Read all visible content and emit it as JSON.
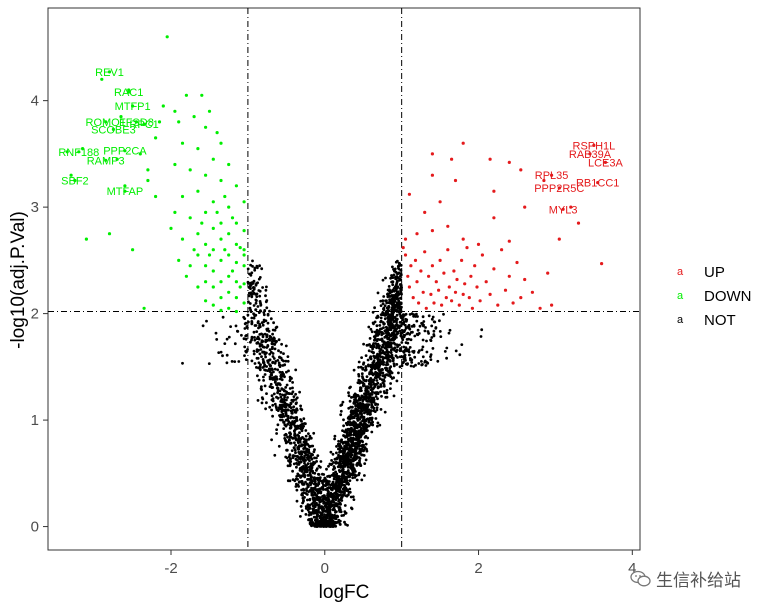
{
  "chart_data": {
    "type": "scatter",
    "xlabel": "logFC",
    "ylabel": "-log10(adj.P.Val)",
    "xlim": [
      -3.6,
      4.1
    ],
    "ylim": [
      -0.22,
      4.87
    ],
    "x_ticks": [
      -2,
      0,
      2,
      4
    ],
    "y_ticks": [
      0,
      1,
      2,
      3,
      4
    ],
    "vlines": [
      -1,
      1
    ],
    "hline": 2.02,
    "legend_position": "right",
    "series": [
      {
        "name": "UP",
        "color": "#e41a1c",
        "points": [
          [
            1.02,
            2.62
          ],
          [
            1.05,
            2.55
          ],
          [
            1.08,
            2.35
          ],
          [
            1.1,
            2.25
          ],
          [
            1.12,
            2.45
          ],
          [
            1.15,
            2.15
          ],
          [
            1.18,
            2.5
          ],
          [
            1.2,
            2.3
          ],
          [
            1.22,
            2.1
          ],
          [
            1.25,
            2.4
          ],
          [
            1.28,
            2.2
          ],
          [
            1.3,
            2.58
          ],
          [
            1.32,
            2.05
          ],
          [
            1.35,
            2.35
          ],
          [
            1.38,
            2.18
          ],
          [
            1.4,
            2.45
          ],
          [
            1.42,
            2.1
          ],
          [
            1.45,
            2.3
          ],
          [
            1.48,
            2.22
          ],
          [
            1.5,
            2.5
          ],
          [
            1.52,
            2.08
          ],
          [
            1.55,
            2.38
          ],
          [
            1.58,
            2.15
          ],
          [
            1.6,
            2.6
          ],
          [
            1.62,
            2.25
          ],
          [
            1.65,
            2.12
          ],
          [
            1.68,
            2.4
          ],
          [
            1.7,
            2.2
          ],
          [
            1.72,
            2.32
          ],
          [
            1.75,
            2.08
          ],
          [
            1.78,
            2.5
          ],
          [
            1.8,
            2.18
          ],
          [
            1.82,
            2.28
          ],
          [
            1.85,
            2.62
          ],
          [
            1.88,
            2.15
          ],
          [
            1.9,
            2.35
          ],
          [
            1.92,
            2.05
          ],
          [
            1.95,
            2.45
          ],
          [
            1.98,
            2.25
          ],
          [
            2.02,
            2.12
          ],
          [
            2.05,
            2.55
          ],
          [
            2.1,
            2.3
          ],
          [
            2.15,
            2.18
          ],
          [
            2.2,
            2.42
          ],
          [
            2.25,
            2.08
          ],
          [
            2.3,
            2.6
          ],
          [
            2.35,
            2.22
          ],
          [
            2.4,
            2.35
          ],
          [
            2.45,
            2.1
          ],
          [
            2.5,
            2.48
          ],
          [
            2.55,
            2.15
          ],
          [
            2.6,
            2.32
          ],
          [
            2.7,
            2.2
          ],
          [
            2.8,
            2.05
          ],
          [
            2.9,
            2.38
          ],
          [
            1.1,
            3.12
          ],
          [
            1.2,
            2.75
          ],
          [
            1.3,
            2.95
          ],
          [
            1.4,
            2.78
          ],
          [
            1.5,
            3.05
          ],
          [
            1.6,
            2.82
          ],
          [
            1.7,
            3.25
          ],
          [
            1.8,
            2.7
          ],
          [
            2.0,
            2.65
          ],
          [
            2.2,
            2.9
          ],
          [
            2.4,
            2.68
          ],
          [
            2.6,
            3.0
          ],
          [
            2.2,
            3.15
          ],
          [
            1.4,
            3.3
          ],
          [
            1.4,
            3.5
          ],
          [
            1.65,
            3.45
          ],
          [
            2.15,
            3.45
          ],
          [
            2.55,
            3.35
          ],
          [
            1.8,
            3.6
          ],
          [
            2.4,
            3.42
          ],
          [
            1.05,
            2.7
          ],
          [
            2.95,
            2.08
          ],
          [
            3.05,
            2.7
          ],
          [
            3.3,
            2.85
          ],
          [
            3.6,
            2.47
          ],
          [
            3.2,
            3.0
          ],
          [
            2.85,
            3.25
          ]
        ],
        "labels": [
          {
            "text": "RSPH1L",
            "x": 3.5,
            "y": 3.58
          },
          {
            "text": "RAB39A",
            "x": 3.45,
            "y": 3.5
          },
          {
            "text": "LCE3A",
            "x": 3.65,
            "y": 3.42
          },
          {
            "text": "RPL35",
            "x": 2.95,
            "y": 3.3
          },
          {
            "text": "PPP2R5C",
            "x": 3.05,
            "y": 3.18
          },
          {
            "text": "RB1CC1",
            "x": 3.55,
            "y": 3.23
          },
          {
            "text": "MYL3",
            "x": 3.1,
            "y": 2.98
          }
        ]
      },
      {
        "name": "DOWN",
        "color": "#00ee00",
        "points": [
          [
            -2.05,
            4.6
          ],
          [
            -1.6,
            4.05
          ],
          [
            -1.8,
            4.05
          ],
          [
            -1.5,
            3.9
          ],
          [
            -1.7,
            3.85
          ],
          [
            -1.4,
            3.7
          ],
          [
            -1.9,
            3.8
          ],
          [
            -1.55,
            3.75
          ],
          [
            -2.1,
            3.95
          ],
          [
            -1.35,
            3.6
          ],
          [
            -1.65,
            3.55
          ],
          [
            -1.85,
            3.6
          ],
          [
            -1.45,
            3.45
          ],
          [
            -1.25,
            3.4
          ],
          [
            -1.75,
            3.35
          ],
          [
            -1.55,
            3.3
          ],
          [
            -1.95,
            3.4
          ],
          [
            -1.35,
            3.25
          ],
          [
            -1.15,
            3.2
          ],
          [
            -1.65,
            3.15
          ],
          [
            -1.85,
            3.1
          ],
          [
            -1.45,
            3.05
          ],
          [
            -1.25,
            3.0
          ],
          [
            -1.05,
            3.05
          ],
          [
            -1.55,
            2.95
          ],
          [
            -1.75,
            2.9
          ],
          [
            -1.35,
            2.85
          ],
          [
            -1.15,
            2.85
          ],
          [
            -1.95,
            2.95
          ],
          [
            -1.45,
            2.8
          ],
          [
            -1.25,
            2.75
          ],
          [
            -1.05,
            2.78
          ],
          [
            -1.65,
            2.75
          ],
          [
            -1.35,
            2.7
          ],
          [
            -1.55,
            2.65
          ],
          [
            -1.15,
            2.65
          ],
          [
            -1.85,
            2.7
          ],
          [
            -1.05,
            2.6
          ],
          [
            -1.45,
            2.6
          ],
          [
            -1.25,
            2.55
          ],
          [
            -1.65,
            2.55
          ],
          [
            -1.35,
            2.5
          ],
          [
            -1.15,
            2.48
          ],
          [
            -1.55,
            2.45
          ],
          [
            -1.05,
            2.45
          ],
          [
            -1.45,
            2.4
          ],
          [
            -1.75,
            2.45
          ],
          [
            -1.25,
            2.35
          ],
          [
            -1.35,
            2.3
          ],
          [
            -1.15,
            2.3
          ],
          [
            -1.55,
            2.3
          ],
          [
            -1.05,
            2.28
          ],
          [
            -1.45,
            2.25
          ],
          [
            -1.65,
            2.25
          ],
          [
            -1.25,
            2.2
          ],
          [
            -1.35,
            2.15
          ],
          [
            -1.15,
            2.15
          ],
          [
            -1.55,
            2.12
          ],
          [
            -1.05,
            2.1
          ],
          [
            -1.45,
            2.08
          ],
          [
            -1.25,
            2.05
          ],
          [
            -1.35,
            2.03
          ],
          [
            -1.15,
            2.02
          ],
          [
            -2.35,
            2.05
          ],
          [
            -1.1,
            2.62
          ],
          [
            -1.2,
            2.9
          ],
          [
            -1.3,
            3.1
          ],
          [
            -1.4,
            2.95
          ],
          [
            -1.5,
            2.55
          ],
          [
            -1.6,
            2.85
          ],
          [
            -1.7,
            2.6
          ],
          [
            -1.8,
            2.35
          ],
          [
            -1.9,
            2.5
          ],
          [
            -2.0,
            2.8
          ],
          [
            -2.2,
            3.1
          ],
          [
            -2.3,
            3.35
          ],
          [
            -2.5,
            2.6
          ],
          [
            -2.4,
            3.5
          ],
          [
            -2.6,
            3.2
          ],
          [
            -2.7,
            3.45
          ],
          [
            -2.8,
            2.75
          ],
          [
            -3.1,
            2.7
          ],
          [
            -2.65,
            3.85
          ],
          [
            -2.55,
            4.1
          ],
          [
            -2.9,
            4.2
          ],
          [
            -3.35,
            3.52
          ],
          [
            -3.15,
            3.55
          ],
          [
            -3.3,
            3.3
          ],
          [
            -2.3,
            3.25
          ],
          [
            -2.15,
            3.8
          ],
          [
            -2.2,
            3.65
          ],
          [
            -1.95,
            3.9
          ],
          [
            -1.2,
            2.4
          ],
          [
            -1.3,
            2.6
          ],
          [
            -1.1,
            2.25
          ],
          [
            -1.05,
            2.55
          ]
        ],
        "labels": [
          {
            "text": "REV1",
            "x": -2.8,
            "y": 4.27
          },
          {
            "text": "RAC1",
            "x": -2.55,
            "y": 4.08
          },
          {
            "text": "MTFP1",
            "x": -2.5,
            "y": 3.95
          },
          {
            "text": "ROMO1",
            "x": -2.85,
            "y": 3.8
          },
          {
            "text": "FFSD8",
            "x": -2.45,
            "y": 3.8
          },
          {
            "text": "SCOBE3",
            "x": -2.75,
            "y": 3.73
          },
          {
            "text": "RPC1",
            "x": -2.35,
            "y": 3.78
          },
          {
            "text": "RNF188",
            "x": -3.2,
            "y": 3.52
          },
          {
            "text": "PPP2CA",
            "x": -2.6,
            "y": 3.53
          },
          {
            "text": "RAMP3",
            "x": -2.85,
            "y": 3.44
          },
          {
            "text": "SBF2",
            "x": -3.25,
            "y": 3.25
          },
          {
            "text": "MTFAP",
            "x": -2.6,
            "y": 3.15
          }
        ]
      },
      {
        "name": "NOT",
        "color": "#000000",
        "points": []
      }
    ]
  },
  "watermark": {
    "text": "生信补给站",
    "icon": "wechat-icon"
  }
}
